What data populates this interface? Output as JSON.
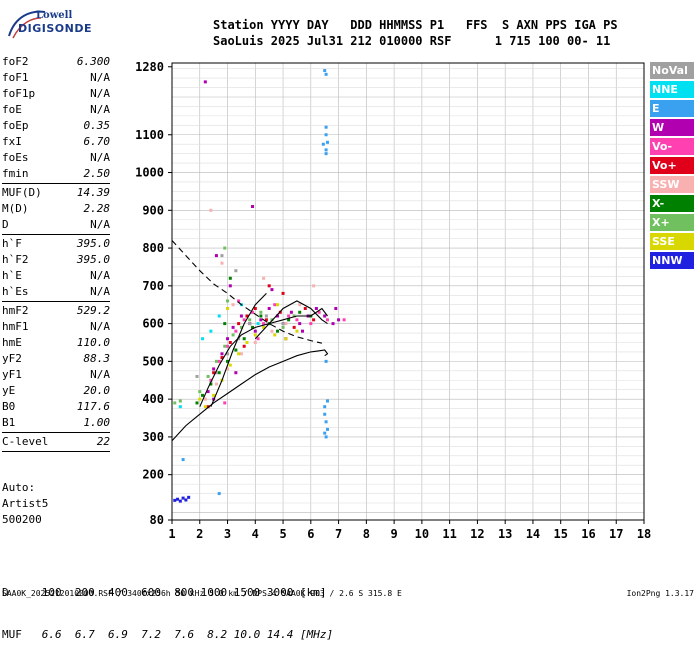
{
  "logo": {
    "line1": "Lowell",
    "line2": "DIGISONDE"
  },
  "header": {
    "line1": "Station YYYY DAY   DDD HHMMSS P1   FFS  S AXN PPS IGA PS",
    "line2": "SaoLuis 2025 Jul31 212 010000 RSF      1 715 100 00- 11"
  },
  "params": [
    {
      "name": "foF2",
      "value": "6.300"
    },
    {
      "name": "foF1",
      "value": "N/A"
    },
    {
      "name": "foF1p",
      "value": "N/A"
    },
    {
      "name": "foE",
      "value": "N/A"
    },
    {
      "name": "foEp",
      "value": "0.35"
    },
    {
      "name": "fxI",
      "value": "6.70"
    },
    {
      "name": "foEs",
      "value": "N/A"
    },
    {
      "name": "fmin",
      "value": "2.50"
    },
    {
      "sep": true
    },
    {
      "name": "MUF(D)",
      "value": "14.39"
    },
    {
      "name": "M(D)",
      "value": "2.28"
    },
    {
      "name": "D",
      "value": "N/A"
    },
    {
      "sep": true
    },
    {
      "name": "h`F",
      "value": "395.0"
    },
    {
      "name": "h`F2",
      "value": "395.0"
    },
    {
      "name": "h`E",
      "value": "N/A"
    },
    {
      "name": "h`Es",
      "value": "N/A"
    },
    {
      "sep": true
    },
    {
      "name": "hmF2",
      "value": "529.2"
    },
    {
      "name": "hmF1",
      "value": "N/A"
    },
    {
      "name": "hmE",
      "value": "110.0"
    },
    {
      "name": "yF2",
      "value": "88.3"
    },
    {
      "name": "yF1",
      "value": "N/A"
    },
    {
      "name": "yE",
      "value": "20.0"
    },
    {
      "name": "B0",
      "value": "117.6"
    },
    {
      "name": "B1",
      "value": "1.00"
    },
    {
      "sep": true
    },
    {
      "name": "C-level",
      "value": "22"
    },
    {
      "sep": true
    }
  ],
  "auto": {
    "line1": "Auto:",
    "line2": "Artist5",
    "line3": "500200"
  },
  "legend": [
    {
      "label": "NoVal",
      "color": "#a0a0a0"
    },
    {
      "label": "NNE",
      "color": "#00e0f0"
    },
    {
      "label": "E",
      "color": "#3aa0f0"
    },
    {
      "label": "W",
      "color": "#b000b0"
    },
    {
      "label": "Vo-",
      "color": "#ff40b0"
    },
    {
      "label": "Vo+",
      "color": "#e0001a"
    },
    {
      "label": "SSW",
      "color": "#f8b0b0"
    },
    {
      "label": "X-",
      "color": "#008000"
    },
    {
      "label": "X+",
      "color": "#70c060"
    },
    {
      "label": "SSE",
      "color": "#d8d800"
    },
    {
      "label": "NNW",
      "color": "#2020e0"
    }
  ],
  "muf": {
    "d_label": "D",
    "muf_label": "MUF",
    "distances": [
      "100",
      "200",
      "400",
      "600",
      "800",
      "1000",
      "1500",
      "3000"
    ],
    "distance_unit": "[km]",
    "mufs": [
      "6.6",
      "6.7",
      "6.9",
      "7.2",
      "7.6",
      "8.2",
      "10.0",
      "14.4"
    ],
    "muf_unit": "[MHz]"
  },
  "footer": {
    "left": "SAA0K_2025212010000.RSF / 340fx256h 50 kHz 5.0 km / DPS-4 SAA0K 903 / 2.6 S 315.8 E",
    "right": "Ion2Png 1.3.17"
  },
  "chart_data": {
    "type": "scatter",
    "title": "",
    "xlabel": "",
    "ylabel": "",
    "xlim": [
      1,
      18
    ],
    "ylim": [
      80,
      1290
    ],
    "grid": true,
    "x_ticks": [
      "1",
      "2",
      "3",
      "4",
      "5",
      "6",
      "7",
      "8",
      "9",
      "10",
      "11",
      "12",
      "13",
      "14",
      "15",
      "16",
      "17",
      "18"
    ],
    "y_ticks": [
      {
        "v": 80,
        "label": "80"
      },
      {
        "v": 200,
        "label": "200"
      },
      {
        "v": 300,
        "label": "300"
      },
      {
        "v": 400,
        "label": "400"
      },
      {
        "v": 500,
        "label": "500"
      },
      {
        "v": 600,
        "label": "600"
      },
      {
        "v": 700,
        "label": "700"
      },
      {
        "v": 800,
        "label": "800"
      },
      {
        "v": 900,
        "label": "900"
      },
      {
        "v": 1000,
        "label": "1000"
      },
      {
        "v": 1100,
        "label": "1100"
      },
      {
        "v": 1280,
        "label": "1280"
      }
    ],
    "echo_clusters": [
      {
        "color": "#2020e0",
        "points": [
          [
            1.1,
            132
          ],
          [
            1.2,
            135
          ],
          [
            1.3,
            130
          ],
          [
            1.4,
            138
          ],
          [
            1.5,
            133
          ],
          [
            1.6,
            140
          ]
        ]
      },
      {
        "color": "#3aa0f0",
        "points": [
          [
            6.5,
            1270
          ],
          [
            6.55,
            1260
          ],
          [
            6.55,
            1100
          ],
          [
            6.6,
            1080
          ],
          [
            6.55,
            1060
          ],
          [
            6.45,
            1075
          ],
          [
            6.55,
            1120
          ],
          [
            6.55,
            1050
          ],
          [
            6.5,
            360
          ],
          [
            6.55,
            340
          ],
          [
            6.6,
            320
          ],
          [
            6.5,
            310
          ],
          [
            6.55,
            300
          ],
          [
            6.5,
            380
          ],
          [
            6.6,
            395
          ],
          [
            6.55,
            500
          ],
          [
            2.7,
            150
          ],
          [
            1.4,
            240
          ]
        ]
      },
      {
        "color": "#b000b0",
        "points": [
          [
            2.3,
            420
          ],
          [
            2.5,
            480
          ],
          [
            2.8,
            520
          ],
          [
            3.0,
            560
          ],
          [
            3.2,
            590
          ],
          [
            3.5,
            620
          ],
          [
            3.8,
            600
          ],
          [
            4.0,
            580
          ],
          [
            4.2,
            610
          ],
          [
            4.5,
            640
          ],
          [
            4.8,
            620
          ],
          [
            5.0,
            600
          ],
          [
            5.3,
            630
          ],
          [
            5.6,
            600
          ],
          [
            5.9,
            620
          ],
          [
            6.2,
            640
          ],
          [
            6.5,
            620
          ],
          [
            6.8,
            600
          ],
          [
            6.9,
            640
          ],
          [
            7.0,
            610
          ],
          [
            2.6,
            780
          ],
          [
            3.1,
            700
          ],
          [
            3.9,
            910
          ],
          [
            2.5,
            400
          ],
          [
            3.3,
            470
          ],
          [
            4.6,
            690
          ],
          [
            5.1,
            560
          ],
          [
            5.7,
            580
          ],
          [
            2.2,
            1240
          ]
        ]
      },
      {
        "color": "#ff40b0",
        "points": [
          [
            2.4,
            450
          ],
          [
            2.7,
            500
          ],
          [
            3.0,
            540
          ],
          [
            3.3,
            580
          ],
          [
            3.6,
            610
          ],
          [
            3.9,
            630
          ],
          [
            4.3,
            600
          ],
          [
            4.7,
            650
          ],
          [
            5.2,
            620
          ],
          [
            5.5,
            610
          ],
          [
            6.0,
            600
          ],
          [
            6.3,
            630
          ],
          [
            6.6,
            610
          ],
          [
            7.2,
            610
          ],
          [
            2.9,
            390
          ],
          [
            4.1,
            560
          ],
          [
            3.4,
            660
          ]
        ]
      },
      {
        "color": "#e0001a",
        "points": [
          [
            2.5,
            470
          ],
          [
            2.8,
            510
          ],
          [
            3.1,
            550
          ],
          [
            3.4,
            600
          ],
          [
            3.7,
            620
          ],
          [
            4.0,
            640
          ],
          [
            4.4,
            610
          ],
          [
            4.9,
            630
          ],
          [
            5.4,
            590
          ],
          [
            5.8,
            640
          ],
          [
            6.1,
            610
          ],
          [
            2.3,
            380
          ],
          [
            3.6,
            540
          ],
          [
            4.5,
            700
          ],
          [
            5.0,
            680
          ]
        ]
      },
      {
        "color": "#f8b0b0",
        "points": [
          [
            2.2,
            400
          ],
          [
            2.6,
            440
          ],
          [
            3.0,
            480
          ],
          [
            3.5,
            520
          ],
          [
            4.0,
            550
          ],
          [
            4.6,
            580
          ],
          [
            5.1,
            600
          ],
          [
            2.8,
            760
          ],
          [
            3.2,
            650
          ],
          [
            4.3,
            720
          ],
          [
            5.6,
            650
          ],
          [
            2.4,
            900
          ],
          [
            6.1,
            700
          ]
        ]
      },
      {
        "color": "#008000",
        "points": [
          [
            2.1,
            410
          ],
          [
            2.4,
            440
          ],
          [
            2.7,
            470
          ],
          [
            3.0,
            500
          ],
          [
            3.3,
            530
          ],
          [
            3.6,
            560
          ],
          [
            3.9,
            590
          ],
          [
            4.2,
            620
          ],
          [
            4.5,
            600
          ],
          [
            4.8,
            580
          ],
          [
            5.2,
            610
          ],
          [
            5.6,
            630
          ],
          [
            6.0,
            620
          ],
          [
            1.9,
            390
          ],
          [
            2.9,
            600
          ],
          [
            3.1,
            720
          ]
        ]
      },
      {
        "color": "#70c060",
        "points": [
          [
            2.0,
            420
          ],
          [
            2.3,
            460
          ],
          [
            2.6,
            500
          ],
          [
            2.9,
            540
          ],
          [
            3.2,
            570
          ],
          [
            3.5,
            590
          ],
          [
            3.8,
            610
          ],
          [
            4.2,
            630
          ],
          [
            4.6,
            610
          ],
          [
            5.0,
            590
          ],
          [
            5.4,
            620
          ],
          [
            1.1,
            390
          ],
          [
            1.3,
            395
          ],
          [
            2.9,
            800
          ],
          [
            3.0,
            660
          ]
        ]
      },
      {
        "color": "#d8d800",
        "points": [
          [
            2.2,
            380
          ],
          [
            2.5,
            410
          ],
          [
            2.8,
            450
          ],
          [
            3.1,
            490
          ],
          [
            3.4,
            520
          ],
          [
            3.7,
            550
          ],
          [
            4.0,
            570
          ],
          [
            4.3,
            590
          ],
          [
            4.7,
            570
          ],
          [
            5.1,
            560
          ],
          [
            5.5,
            580
          ],
          [
            2.0,
            400
          ],
          [
            3.0,
            640
          ],
          [
            4.8,
            650
          ]
        ]
      },
      {
        "color": "#a0a0a0",
        "points": [
          [
            2.6,
            470
          ],
          [
            3.0,
            520
          ],
          [
            3.4,
            560
          ],
          [
            3.8,
            600
          ],
          [
            4.4,
            620
          ],
          [
            5.0,
            600
          ],
          [
            2.8,
            780
          ],
          [
            3.3,
            740
          ],
          [
            1.9,
            460
          ]
        ]
      },
      {
        "color": "#00e0f0",
        "points": [
          [
            2.1,
            560
          ],
          [
            2.7,
            620
          ],
          [
            3.5,
            650
          ],
          [
            4.1,
            600
          ],
          [
            1.3,
            380
          ],
          [
            2.4,
            580
          ]
        ]
      }
    ],
    "lines": [
      {
        "style": "solid",
        "points": [
          [
            1,
            290
          ],
          [
            1.5,
            330
          ],
          [
            2,
            360
          ],
          [
            2.5,
            390
          ],
          [
            3,
            415
          ],
          [
            3.5,
            440
          ],
          [
            4,
            465
          ],
          [
            4.5,
            485
          ],
          [
            5,
            500
          ],
          [
            5.5,
            515
          ],
          [
            6,
            525
          ],
          [
            6.3,
            528
          ],
          [
            6.5,
            530
          ],
          [
            6.6,
            520
          ],
          [
            6.5,
            515
          ]
        ]
      },
      {
        "style": "solid",
        "points": [
          [
            2.0,
            380
          ],
          [
            2.3,
            430
          ],
          [
            2.7,
            490
          ],
          [
            3.1,
            540
          ],
          [
            3.5,
            570
          ],
          [
            4.0,
            590
          ],
          [
            4.5,
            600
          ],
          [
            5.0,
            610
          ],
          [
            5.5,
            620
          ],
          [
            6.0,
            620
          ],
          [
            6.4,
            640
          ],
          [
            6.6,
            620
          ]
        ]
      },
      {
        "style": "solid",
        "points": [
          [
            2.4,
            380
          ],
          [
            2.8,
            450
          ],
          [
            3.2,
            530
          ],
          [
            3.6,
            600
          ],
          [
            4.0,
            650
          ],
          [
            4.4,
            680
          ]
        ]
      },
      {
        "style": "solid",
        "points": [
          [
            4.0,
            560
          ],
          [
            4.5,
            600
          ],
          [
            5.0,
            640
          ],
          [
            5.5,
            660
          ],
          [
            6.0,
            640
          ],
          [
            6.4,
            610
          ],
          [
            6.6,
            600
          ]
        ]
      },
      {
        "style": "dashed",
        "points": [
          [
            1,
            820
          ],
          [
            1.5,
            780
          ],
          [
            2,
            740
          ],
          [
            2.5,
            705
          ],
          [
            3,
            680
          ],
          [
            3.5,
            650
          ],
          [
            4,
            625
          ],
          [
            4.5,
            600
          ],
          [
            5,
            580
          ],
          [
            5.5,
            565
          ],
          [
            6,
            555
          ],
          [
            6.4,
            548
          ]
        ]
      }
    ]
  }
}
